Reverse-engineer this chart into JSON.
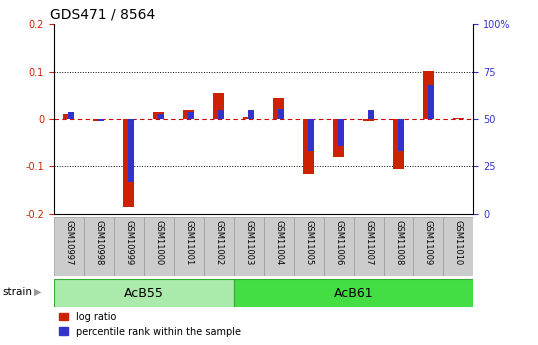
{
  "title": "GDS471 / 8564",
  "samples": [
    "GSM10997",
    "GSM10998",
    "GSM10999",
    "GSM11000",
    "GSM11001",
    "GSM11002",
    "GSM11003",
    "GSM11004",
    "GSM11005",
    "GSM11006",
    "GSM11007",
    "GSM11008",
    "GSM11009",
    "GSM11010"
  ],
  "log_ratio": [
    0.01,
    -0.005,
    -0.185,
    0.015,
    0.02,
    0.055,
    0.005,
    0.045,
    -0.115,
    -0.08,
    -0.005,
    -0.105,
    0.102,
    0.002
  ],
  "percentile_mapped": [
    0.014,
    -0.004,
    -0.132,
    0.01,
    0.014,
    0.02,
    0.018,
    0.022,
    -0.068,
    -0.056,
    0.02,
    -0.068,
    0.072,
    0.0
  ],
  "groups": [
    {
      "label": "AcB55",
      "start": 0,
      "end": 6,
      "color": "#aaeaaa"
    },
    {
      "label": "AcB61",
      "start": 6,
      "end": 14,
      "color": "#44dd44"
    }
  ],
  "ylim": [
    -0.2,
    0.2
  ],
  "yticks_left": [
    -0.2,
    -0.1,
    0.0,
    0.1,
    0.2
  ],
  "yticks_left_labels": [
    "-0.2",
    "-0.1",
    "0",
    "0.1",
    "0.2"
  ],
  "yticks_right": [
    -0.2,
    -0.1,
    0.0,
    0.1,
    0.2
  ],
  "yticks_right_labels": [
    "0",
    "25",
    "50",
    "75",
    "100%"
  ],
  "red_color": "#cc2200",
  "blue_color": "#3333cc",
  "zero_line_color": "#cc0000",
  "bg_color": "#ffffff",
  "sample_bg": "#cccccc",
  "sample_border": "#999999",
  "title_fontsize": 10,
  "tick_fontsize": 7,
  "sample_fontsize": 6,
  "group_fontsize": 9,
  "legend_fontsize": 7,
  "legend_items": [
    "log ratio",
    "percentile rank within the sample"
  ]
}
